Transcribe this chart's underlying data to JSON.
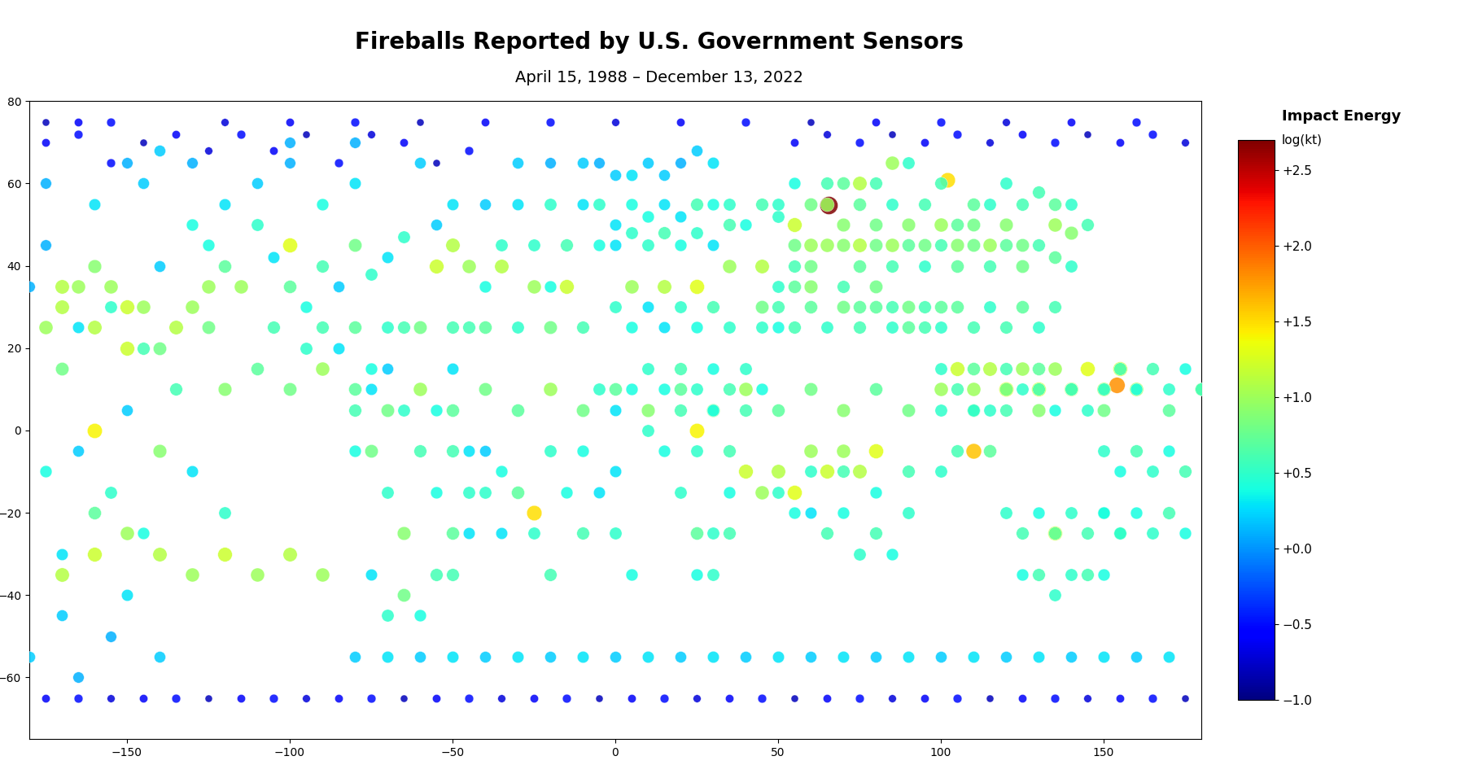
{
  "title": "Fireballs Reported by U.S. Government Sensors",
  "subtitle": "April 15, 1988 – December 13, 2022",
  "title_fontsize": 20,
  "subtitle_fontsize": 14,
  "colorbar_label": "Impact Energy",
  "colorbar_sublabel": "log(kt)",
  "cmap": "jet_r",
  "vmin": -1.0,
  "vmax": 2.7,
  "colorbar_ticks": [
    -1.0,
    -0.5,
    0.0,
    0.5,
    1.0,
    1.5,
    2.0,
    2.5
  ],
  "colorbar_ticklabels": [
    "−1.0",
    "−0.5",
    "+0.0",
    "+0.5",
    "+1.0",
    "+1.5",
    "+2.0",
    "+2.5"
  ],
  "land_color": "#c8c8c8",
  "ocean_color": "#ffffff",
  "map_border_color": "#000000",
  "background_color": "#ffffff",
  "marker_edge_color": "#ffffff",
  "marker_edge_width": 0.3,
  "marker_alpha": 0.85,
  "size_scale": 60,
  "min_size": 15,
  "chelyabinsk_lon": 65.5,
  "chelyabinsk_lat": 54.8,
  "chelyabinsk_energy": 2.7
}
